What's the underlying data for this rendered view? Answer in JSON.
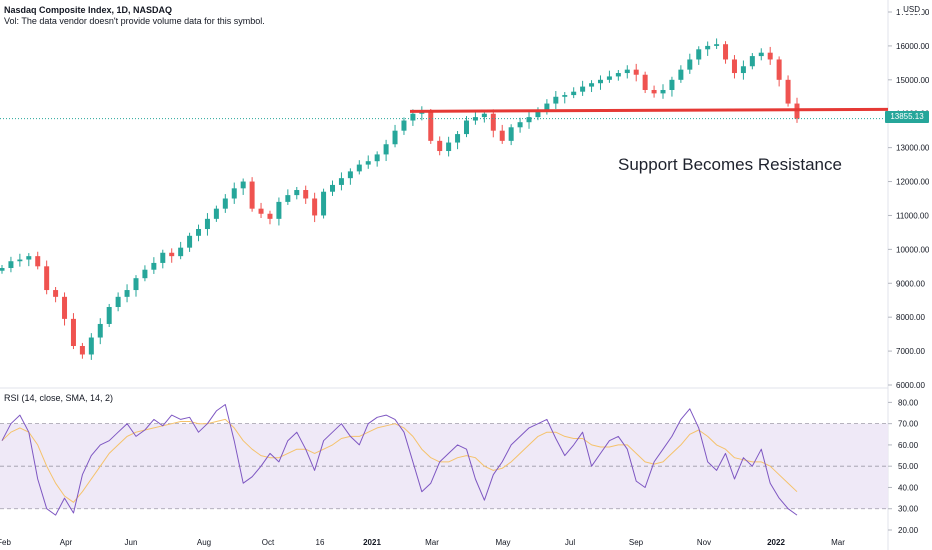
{
  "header": {
    "title": "Nasdaq Composite Index, 1D, NASDAQ",
    "vol_note": "Vol: The data vendor doesn't provide volume data for this symbol."
  },
  "price_label": {
    "currency": "USD",
    "last": "13855.13"
  },
  "annotation": "Support Becomes Resistance",
  "colors": {
    "up": "#26a69a",
    "down": "#ef5350",
    "resistance": "#e53935",
    "rsi": "#7e57c2",
    "rsi_ma": "#f5c26b",
    "rsi_band": "#ede7f6"
  },
  "chart_data": [
    {
      "type": "candlestick",
      "title": "Nasdaq Composite Index, 1D, NASDAQ",
      "x_ticks": [
        "Feb",
        "Apr",
        "Jun",
        "Aug",
        "Oct",
        "16",
        "2021",
        "Mar",
        "May",
        "Jul",
        "Sep",
        "Nov",
        "2022",
        "Mar"
      ],
      "y_ticks": [
        "6000.00",
        "7000.00",
        "8000.00",
        "9000.00",
        "10000.00",
        "11000.00",
        "12000.00",
        "13000.00",
        "14000.00",
        "15000.00",
        "16000.00",
        "17000.00"
      ],
      "ylim": [
        6000,
        17000
      ],
      "resistance_level": 14100,
      "last_value": 13855.13,
      "series": [
        {
          "name": "close",
          "values": [
            9450,
            9650,
            9700,
            9800,
            9500,
            8800,
            8600,
            7950,
            7150,
            6900,
            7400,
            7800,
            8300,
            8600,
            8800,
            9150,
            9400,
            9600,
            9900,
            9800,
            10050,
            10400,
            10600,
            10900,
            11200,
            11500,
            11800,
            12000,
            11200,
            11050,
            10900,
            11400,
            11600,
            11750,
            11500,
            11000,
            11700,
            11900,
            12100,
            12300,
            12500,
            12600,
            12800,
            13100,
            13500,
            13800,
            14000,
            14050,
            13200,
            12900,
            13150,
            13400,
            13800,
            13900,
            14000,
            13500,
            13200,
            13600,
            13750,
            13900,
            14100,
            14300,
            14500,
            14550,
            14650,
            14800,
            14900,
            15000,
            15100,
            15200,
            15300,
            15150,
            14700,
            14600,
            14700,
            15000,
            15300,
            15600,
            15900,
            16000,
            16050,
            15600,
            15200,
            15400,
            15700,
            15800,
            15600,
            15000,
            14300,
            13855
          ]
        }
      ],
      "annotations": [
        "Support Becomes Resistance"
      ]
    },
    {
      "type": "line",
      "title": "RSI (14, close, SMA, 14, 2)",
      "y_ticks": [
        "20.00",
        "30.00",
        "40.00",
        "50.00",
        "60.00",
        "70.00",
        "80.00"
      ],
      "ylim": [
        20,
        83
      ],
      "bands": [
        30,
        50,
        70
      ],
      "series": [
        {
          "name": "RSI",
          "values": [
            62,
            70,
            74,
            66,
            44,
            30,
            27,
            35,
            28,
            46,
            55,
            60,
            62,
            66,
            70,
            64,
            67,
            72,
            69,
            74,
            72,
            73,
            66,
            70,
            76,
            79,
            62,
            42,
            45,
            50,
            56,
            52,
            62,
            66,
            58,
            48,
            62,
            66,
            70,
            64,
            60,
            70,
            73,
            74,
            72,
            66,
            52,
            38,
            42,
            52,
            56,
            60,
            58,
            44,
            34,
            46,
            52,
            60,
            64,
            68,
            70,
            72,
            63,
            55,
            60,
            66,
            50,
            56,
            62,
            64,
            58,
            43,
            40,
            52,
            58,
            64,
            72,
            77,
            68,
            52,
            48,
            56,
            44,
            54,
            50,
            58,
            42,
            35,
            30,
            27
          ]
        },
        {
          "name": "SMA",
          "values": [
            62,
            66,
            68,
            66,
            60,
            50,
            42,
            36,
            33,
            38,
            44,
            50,
            56,
            60,
            64,
            66,
            67,
            68,
            69,
            70,
            71,
            71,
            70,
            70,
            71,
            72,
            68,
            62,
            58,
            55,
            54,
            54,
            56,
            58,
            58,
            56,
            58,
            60,
            63,
            64,
            64,
            66,
            68,
            69,
            70,
            68,
            64,
            58,
            54,
            52,
            52,
            54,
            55,
            54,
            50,
            48,
            49,
            52,
            56,
            60,
            64,
            66,
            66,
            64,
            63,
            63,
            60,
            59,
            59,
            60,
            60,
            56,
            52,
            51,
            52,
            56,
            60,
            65,
            67,
            64,
            60,
            58,
            54,
            53,
            52,
            52,
            50,
            46,
            42,
            38
          ]
        }
      ]
    }
  ]
}
